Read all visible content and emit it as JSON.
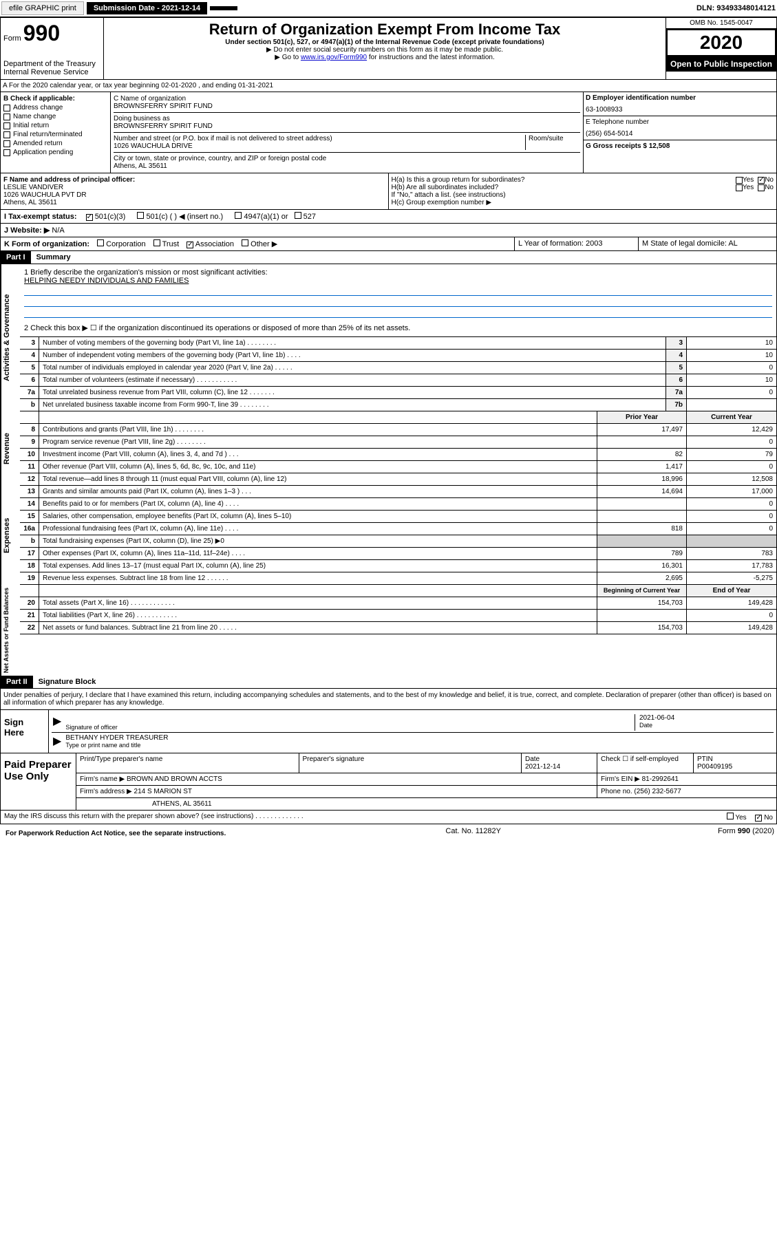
{
  "topbar": {
    "efile": "efile GRAPHIC print",
    "submission_label": "Submission Date - 2021-12-14",
    "dln": "DLN: 93493348014121"
  },
  "header": {
    "form_prefix": "Form",
    "form_number": "990",
    "dept": "Department of the Treasury",
    "irs": "Internal Revenue Service",
    "title": "Return of Organization Exempt From Income Tax",
    "subtitle": "Under section 501(c), 527, or 4947(a)(1) of the Internal Revenue Code (except private foundations)",
    "note1": "▶ Do not enter social security numbers on this form as it may be made public.",
    "note2_pre": "▶ Go to ",
    "note2_link": "www.irs.gov/Form990",
    "note2_post": " for instructions and the latest information.",
    "omb": "OMB No. 1545-0047",
    "year": "2020",
    "open": "Open to Public Inspection"
  },
  "sectionA": "A For the 2020 calendar year, or tax year beginning 02-01-2020    , and ending 01-31-2021",
  "sectionB": {
    "label": "B Check if applicable:",
    "items": [
      "Address change",
      "Name change",
      "Initial return",
      "Final return/terminated",
      "Amended return",
      "Application pending"
    ]
  },
  "sectionC": {
    "name_label": "C Name of organization",
    "name": "BROWNSFERRY SPIRIT FUND",
    "dba_label": "Doing business as",
    "dba": "BROWNSFERRY SPIRIT FUND",
    "addr_label": "Number and street (or P.O. box if mail is not delivered to street address)",
    "room_label": "Room/suite",
    "addr": "1026 WAUCHULA DRIVE",
    "city_label": "City or town, state or province, country, and ZIP or foreign postal code",
    "city": "Athens, AL  35611"
  },
  "sectionD": {
    "label": "D Employer identification number",
    "value": "63-1008933"
  },
  "sectionE": {
    "label": "E Telephone number",
    "value": "(256) 654-5014"
  },
  "sectionG": {
    "label": "G Gross receipts $ 12,508"
  },
  "sectionF": {
    "label": "F  Name and address of principal officer:",
    "name": "LESLIE VANDIVER",
    "addr": "1026 WAUCHULA PVT DR",
    "city": "Athens, AL  35611"
  },
  "sectionH": {
    "ha": "H(a)  Is this a group return for subordinates?",
    "hb": "H(b)  Are all subordinates included?",
    "hb_note": "If \"No,\" attach a list. (see instructions)",
    "hc": "H(c)  Group exemption number ▶",
    "yes": "Yes",
    "no": "No"
  },
  "sectionI": {
    "label": "I   Tax-exempt status:",
    "opt1": "501(c)(3)",
    "opt2": "501(c) (  ) ◀ (insert no.)",
    "opt3": "4947(a)(1) or",
    "opt4": "527"
  },
  "sectionJ": {
    "label": "J   Website: ▶",
    "value": "N/A"
  },
  "sectionK": {
    "label": "K Form of organization:",
    "corp": "Corporation",
    "trust": "Trust",
    "assoc": "Association",
    "other": "Other ▶"
  },
  "sectionL": {
    "label": "L Year of formation: 2003"
  },
  "sectionM": {
    "label": "M State of legal domicile: AL"
  },
  "part1": {
    "header": "Part I",
    "title": "Summary",
    "q1": "1   Briefly describe the organization's mission or most significant activities:",
    "mission": "HELPING NEEDY INDIVIDUALS AND FAMILIES",
    "q2": "2    Check this box ▶ ☐  if the organization discontinued its operations or disposed of more than 25% of its net assets.",
    "labels": {
      "vert1": "Activities & Governance",
      "vert2": "Revenue",
      "vert3": "Expenses",
      "vert4": "Net Assets or Fund Balances"
    },
    "lines_single": [
      {
        "n": "3",
        "t": "Number of voting members of the governing body (Part VI, line 1a)  .    .    .    .    .    .    .    .",
        "b": "3",
        "v": "10"
      },
      {
        "n": "4",
        "t": "Number of independent voting members of the governing body (Part VI, line 1b)  .    .    .    .",
        "b": "4",
        "v": "10"
      },
      {
        "n": "5",
        "t": "Total number of individuals employed in calendar year 2020 (Part V, line 2a)  .    .    .    .    .",
        "b": "5",
        "v": "0"
      },
      {
        "n": "6",
        "t": "Total number of volunteers (estimate if necessary)    .    .    .    .    .    .    .    .    .    .    .",
        "b": "6",
        "v": "10"
      },
      {
        "n": "7a",
        "t": "Total unrelated business revenue from Part VIII, column (C), line 12  .    .    .    .    .    .    .",
        "b": "7a",
        "v": "0"
      },
      {
        "n": "b",
        "t": "Net unrelated business taxable income from Form 990-T, line 39   .    .    .    .    .    .    .    .",
        "b": "7b",
        "v": ""
      }
    ],
    "col_prior": "Prior Year",
    "col_current": "Current Year",
    "lines_rev": [
      {
        "n": "8",
        "t": "Contributions and grants (Part VIII, line 1h)  .    .    .    .    .    .    .    .",
        "p": "17,497",
        "c": "12,429"
      },
      {
        "n": "9",
        "t": "Program service revenue (Part VIII, line 2g)  .    .    .    .    .    .    .    .",
        "p": "",
        "c": "0"
      },
      {
        "n": "10",
        "t": "Investment income (Part VIII, column (A), lines 3, 4, and 7d )  .    .    .",
        "p": "82",
        "c": "79"
      },
      {
        "n": "11",
        "t": "Other revenue (Part VIII, column (A), lines 5, 6d, 8c, 9c, 10c, and 11e)",
        "p": "1,417",
        "c": "0"
      },
      {
        "n": "12",
        "t": "Total revenue—add lines 8 through 11 (must equal Part VIII, column (A), line 12)",
        "p": "18,996",
        "c": "12,508"
      }
    ],
    "lines_exp": [
      {
        "n": "13",
        "t": "Grants and similar amounts paid (Part IX, column (A), lines 1–3 )  .    .    .",
        "p": "14,694",
        "c": "17,000"
      },
      {
        "n": "14",
        "t": "Benefits paid to or for members (Part IX, column (A), line 4)   .    .    .    .",
        "p": "",
        "c": "0"
      },
      {
        "n": "15",
        "t": "Salaries, other compensation, employee benefits (Part IX, column (A), lines 5–10)",
        "p": "",
        "c": "0"
      },
      {
        "n": "16a",
        "t": "Professional fundraising fees (Part IX, column (A), line 11e)  .    .    .    .",
        "p": "818",
        "c": "0"
      },
      {
        "n": "b",
        "t": "Total fundraising expenses (Part IX, column (D), line 25) ▶0",
        "p": "",
        "c": "",
        "shaded": true
      },
      {
        "n": "17",
        "t": "Other expenses (Part IX, column (A), lines 11a–11d, 11f–24e)  .    .    .    .",
        "p": "789",
        "c": "783"
      },
      {
        "n": "18",
        "t": "Total expenses. Add lines 13–17 (must equal Part IX, column (A), line 25)",
        "p": "16,301",
        "c": "17,783"
      },
      {
        "n": "19",
        "t": "Revenue less expenses. Subtract line 18 from line 12  .    .    .    .    .    .",
        "p": "2,695",
        "c": "-5,275"
      }
    ],
    "col_begin": "Beginning of Current Year",
    "col_end": "End of Year",
    "lines_net": [
      {
        "n": "20",
        "t": "Total assets (Part X, line 16)  .    .    .    .    .    .    .    .    .    .    .    .",
        "p": "154,703",
        "c": "149,428"
      },
      {
        "n": "21",
        "t": "Total liabilities (Part X, line 26)  .    .    .    .    .    .    .    .    .    .    .",
        "p": "",
        "c": "0"
      },
      {
        "n": "22",
        "t": "Net assets or fund balances. Subtract line 21 from line 20  .    .    .    .    .",
        "p": "154,703",
        "c": "149,428"
      }
    ]
  },
  "part2": {
    "header": "Part II",
    "title": "Signature Block",
    "penalty": "Under penalties of perjury, I declare that I have examined this return, including accompanying schedules and statements, and to the best of my knowledge and belief, it is true, correct, and complete. Declaration of preparer (other than officer) is based on all information of which preparer has any knowledge."
  },
  "sign": {
    "here": "Sign Here",
    "sig_officer": "Signature of officer",
    "date_label": "Date",
    "date": "2021-06-04",
    "name": "BETHANY HYDER  TREASURER",
    "name_label": "Type or print name and title"
  },
  "prep": {
    "label": "Paid Preparer Use Only",
    "h1": "Print/Type preparer's name",
    "h2": "Preparer's signature",
    "h3": "Date",
    "h3v": "2021-12-14",
    "h4": "Check ☐  if self-employed",
    "h5": "PTIN",
    "h5v": "P00409195",
    "firm_name_label": "Firm's name      ▶",
    "firm_name": "BROWN AND BROWN ACCTS",
    "firm_ein_label": "Firm's EIN ▶",
    "firm_ein": "81-2992641",
    "firm_addr_label": "Firm's address ▶",
    "firm_addr": "214 S MARION ST",
    "firm_city": "ATHENS, AL  35611",
    "phone_label": "Phone no.",
    "phone": "(256) 232-5677"
  },
  "discuss": {
    "text": "May the IRS discuss this return with the preparer shown above? (see instructions)   .    .    .    .    .    .    .    .    .    .    .    .    .",
    "yes": "Yes",
    "no": "No"
  },
  "footer": {
    "paperwork": "For Paperwork Reduction Act Notice, see the separate instructions.",
    "cat": "Cat. No. 11282Y",
    "form": "Form 990 (2020)"
  }
}
